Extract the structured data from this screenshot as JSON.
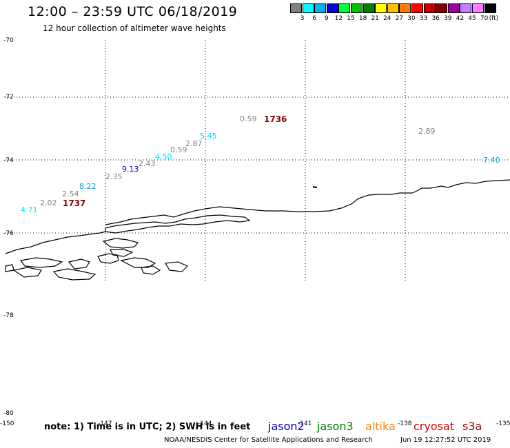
{
  "title": "12:00 – 23:59 UTC 06/18/2019",
  "subtitle": "12 hour collection of altimeter wave heights",
  "legend": {
    "colors": [
      "#808080",
      "#00ffff",
      "#00b0f0",
      "#0000e0",
      "#00ff40",
      "#00c000",
      "#008000",
      "#ffff00",
      "#ffc000",
      "#ff8000",
      "#ff0000",
      "#c00000",
      "#800000",
      "#a000a0",
      "#c080ff",
      "#ff80ff",
      "#000000"
    ],
    "labels": [
      "3",
      "6",
      "9",
      "12",
      "15",
      "18",
      "21",
      "24",
      "27",
      "30",
      "33",
      "36",
      "39",
      "42",
      "45",
      "70"
    ],
    "unit": "(ft)"
  },
  "latitude_labels": [
    "-70",
    "-72",
    "-74",
    "-76",
    "-78",
    "-80"
  ],
  "longitude_labels": [
    "-150",
    "-147",
    "-144",
    "-141",
    "-138",
    "-135"
  ],
  "wave_heights": [
    {
      "value": "0.59",
      "color": "#808080"
    },
    {
      "value": "5.45",
      "color": "#00e0ff"
    },
    {
      "value": "2.87",
      "color": "#808080"
    },
    {
      "value": "0.59",
      "color": "#808080"
    },
    {
      "value": "4.50",
      "color": "#00e0ff"
    },
    {
      "value": "2.43",
      "color": "#808080"
    },
    {
      "value": "9.13",
      "color": "#0000d0"
    },
    {
      "value": "2.35",
      "color": "#808080"
    },
    {
      "value": "8.22",
      "color": "#00a0e0"
    },
    {
      "value": "2.54",
      "color": "#808080"
    },
    {
      "value": "2.02",
      "color": "#808080"
    },
    {
      "value": "4.71",
      "color": "#00e0ff"
    },
    {
      "value": "2.89",
      "color": "#808080"
    },
    {
      "value": "7.40",
      "color": "#00a0e0"
    }
  ],
  "time_labels": [
    {
      "value": "1736",
      "color": "#800000"
    },
    {
      "value": "1737",
      "color": "#800000"
    }
  ],
  "note": "note: 1) Time is in UTC; 2) SWH is in feet",
  "satellites": [
    {
      "name": "jason2",
      "color": "#0000c0"
    },
    {
      "name": "jason3",
      "color": "#008000"
    },
    {
      "name": "altika",
      "color": "#ff8000"
    },
    {
      "name": "cryosat",
      "color": "#e00000"
    },
    {
      "name": "s3a",
      "color": "#a00000"
    }
  ],
  "credit": "NOAA/NESDIS Center for Satellite Applications and Research",
  "timestamp": "Jun 19 12:27:52 UTC 2019"
}
